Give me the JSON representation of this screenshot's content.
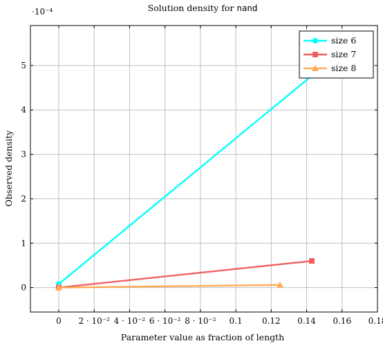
{
  "chart_data": {
    "type": "line",
    "title_prefix": "Solution density for",
    "title_code": "nand",
    "xlabel": "Parameter value as fraction of length",
    "ylabel": "Observed density",
    "y_scale_note": "·10⁻⁴",
    "xlim": [
      -0.016,
      0.18
    ],
    "ylim": [
      -0.55,
      5.9
    ],
    "x_ticks": [
      0,
      0.02,
      0.04,
      0.06,
      0.08,
      0.1,
      0.12,
      0.14,
      0.16,
      0.18
    ],
    "x_tick_labels": [
      "0",
      "2 · 10⁻²",
      "4 · 10⁻²",
      "6 · 10⁻²",
      "8 · 10⁻²",
      "0.1",
      "0.12",
      "0.14",
      "0.16",
      "0.18"
    ],
    "y_ticks": [
      0,
      1,
      2,
      3,
      4,
      5
    ],
    "y_tick_labels": [
      "0",
      "1",
      "2",
      "3",
      "4",
      "5"
    ],
    "grid": true,
    "legend_position": "top-right",
    "series": [
      {
        "name": "size 6",
        "color": "#00ffff",
        "marker": "circle",
        "x": [
          0,
          0.1667
        ],
        "y": [
          0.08,
          5.55
        ]
      },
      {
        "name": "size 7",
        "color": "#f06060",
        "marker": "square",
        "x": [
          0,
          0.1429
        ],
        "y": [
          0.0,
          0.6
        ]
      },
      {
        "name": "size 8",
        "color": "#ffaa55",
        "marker": "triangle",
        "x": [
          0,
          0.125
        ],
        "y": [
          0.0,
          0.06
        ]
      }
    ]
  }
}
